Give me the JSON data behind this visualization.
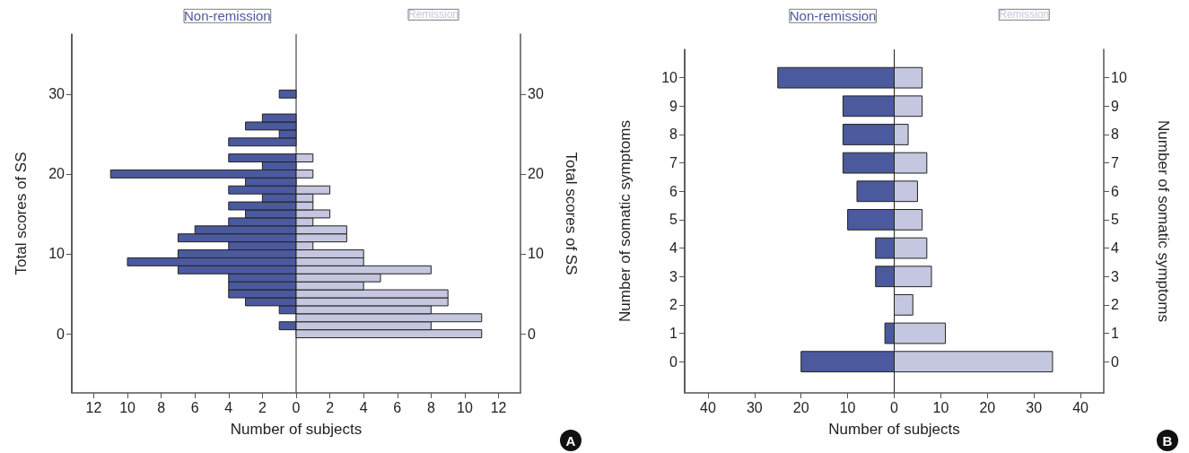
{
  "chart_data": [
    {
      "type": "bar",
      "orientation": "horizontal",
      "stacked": true,
      "xlabel": "Number of subjects",
      "ylabel": "Total scores of SS",
      "y2label": "Total scores of SS",
      "annotations": [
        "A"
      ],
      "x": [
        0,
        1,
        2,
        3,
        4,
        5,
        6,
        7,
        8,
        9,
        10,
        11,
        12,
        13,
        14,
        15,
        16,
        17,
        18,
        19,
        20,
        21,
        22,
        23,
        24,
        25,
        26,
        27,
        28,
        29,
        30
      ],
      "series": [
        {
          "name": "Non-remission",
          "color": "#4b5a9c",
          "values": [
            null,
            -1,
            null,
            -1,
            -3,
            -4,
            -4,
            -4,
            -7,
            -10,
            -7,
            -4,
            -7,
            -6,
            -4,
            -3,
            -4,
            -2,
            -4,
            -3,
            -11,
            -2,
            -4,
            null,
            -4,
            -1,
            -3,
            -2,
            null,
            null,
            -1
          ]
        },
        {
          "name": "Remission",
          "color": "#c5c6df",
          "values": [
            11,
            8,
            11,
            8,
            9,
            9,
            4,
            5,
            8,
            4,
            4,
            1,
            3,
            3,
            1,
            2,
            1,
            1,
            2,
            null,
            1,
            null,
            1,
            null,
            null,
            null,
            null,
            null,
            null,
            null,
            null
          ]
        }
      ],
      "xlim": [
        -13.3,
        13.3
      ],
      "xticks": [
        {
          "value": -12,
          "label": "12"
        },
        {
          "value": -10,
          "label": "10"
        },
        {
          "value": -8,
          "label": "8"
        },
        {
          "value": -6,
          "label": "6"
        },
        {
          "value": -4,
          "label": "4"
        },
        {
          "value": -2,
          "label": "2"
        },
        0,
        2,
        4,
        6,
        8,
        10,
        12
      ],
      "ylim": [
        -7.4,
        37.5
      ],
      "yticks": [
        0,
        10,
        20,
        30
      ],
      "y2lim": [
        -7.4,
        37.5
      ],
      "y2ticks": [
        0,
        10,
        20,
        30
      ]
    },
    {
      "type": "bar",
      "orientation": "horizontal",
      "stacked": true,
      "xlabel": "Number of subjects",
      "ylabel": "Number of somatic symptoms",
      "y2label": "Number of somatic symptoms",
      "annotations": [
        "B"
      ],
      "x": [
        0,
        1,
        2,
        3,
        4,
        5,
        6,
        7,
        8,
        9,
        10
      ],
      "series": [
        {
          "name": "Non-remission",
          "color": "#4b5a9c",
          "values": [
            -20,
            -2,
            null,
            -4,
            -4,
            -10,
            -8,
            -11,
            -11,
            -11,
            -25
          ]
        },
        {
          "name": "Remission",
          "color": "#c5c6df",
          "values": [
            34,
            11,
            4,
            8,
            7,
            6,
            5,
            7,
            3,
            6,
            6
          ]
        }
      ],
      "xlim": [
        -45,
        45
      ],
      "xticks": [
        {
          "value": -40,
          "label": "40"
        },
        {
          "value": -30,
          "label": "30"
        },
        {
          "value": -20,
          "label": "20"
        },
        {
          "value": -10,
          "label": "10"
        },
        0,
        10,
        20,
        30,
        40
      ],
      "ylim": [
        -1.1,
        11
      ],
      "yticks": [
        0,
        1,
        2,
        3,
        4,
        5,
        6,
        7,
        8,
        9,
        10
      ],
      "y2lim": [
        -1.1,
        11
      ],
      "y2ticks": [
        0,
        1,
        2,
        3,
        4,
        5,
        6,
        7,
        8,
        9,
        10
      ]
    }
  ]
}
